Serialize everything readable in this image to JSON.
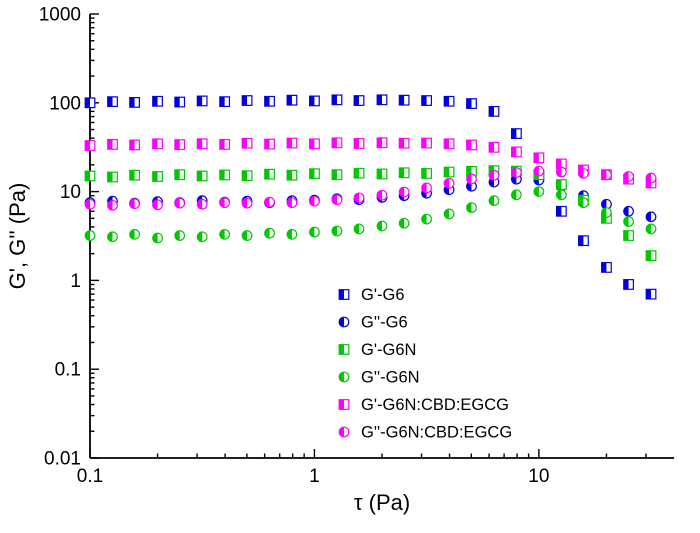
{
  "chart_data": {
    "type": "scatter",
    "title": "",
    "xlabel": "τ (Pa)",
    "ylabel": "G', G'' (Pa)",
    "xscale": "log",
    "yscale": "log",
    "xlim": [
      0.1,
      40
    ],
    "ylim": [
      0.01,
      1000
    ],
    "grid": false,
    "legend_position": "inside-bottom-center",
    "x_axis": {
      "ticks": [
        {
          "v": 0.1,
          "label": "0.1"
        },
        {
          "v": 1,
          "label": "1"
        },
        {
          "v": 10,
          "label": "10"
        }
      ]
    },
    "y_axis": {
      "ticks": [
        {
          "v": 0.01,
          "label": "0.01"
        },
        {
          "v": 0.1,
          "label": "0.1"
        },
        {
          "v": 1,
          "label": "1"
        },
        {
          "v": 10,
          "label": "10"
        },
        {
          "v": 100,
          "label": "100"
        },
        {
          "v": 1000,
          "label": "1000"
        }
      ]
    },
    "x": [
      0.1,
      0.126,
      0.158,
      0.2,
      0.251,
      0.316,
      0.398,
      0.501,
      0.631,
      0.794,
      1.0,
      1.26,
      1.58,
      2.0,
      2.51,
      3.16,
      3.98,
      5.01,
      6.31,
      7.94,
      10.0,
      12.6,
      15.8,
      20.0,
      25.1,
      31.6
    ],
    "series": [
      {
        "id": "gprime-g6",
        "name": "G'-G6",
        "marker": "square",
        "fill_style": "half-left",
        "color": "#0000E0",
        "values": [
          100,
          103,
          101,
          104,
          102,
          105,
          103,
          106,
          104,
          107,
          105,
          108,
          106,
          108,
          107,
          106,
          104,
          98,
          80,
          45,
          15,
          6,
          2.8,
          1.4,
          0.9,
          0.7
        ]
      },
      {
        "id": "gdblprime-g6",
        "name": "G''-G6",
        "marker": "circle",
        "fill_style": "half-left",
        "color": "#0000E0",
        "values": [
          7.5,
          7.8,
          7.4,
          7.7,
          7.5,
          7.9,
          7.6,
          7.8,
          7.5,
          7.9,
          8.0,
          8.3,
          8.1,
          8.6,
          9.0,
          9.6,
          10.5,
          11.5,
          12.8,
          13.8,
          13.5,
          11.5,
          9.0,
          7.2,
          6.0,
          5.2
        ]
      },
      {
        "id": "gprime-g6n",
        "name": "G'-G6N",
        "marker": "square",
        "fill_style": "half-left",
        "color": "#00C800",
        "values": [
          15,
          14.6,
          15.3,
          14.8,
          15.5,
          15.0,
          15.4,
          15.1,
          15.7,
          15.3,
          15.9,
          15.5,
          16.1,
          15.8,
          16.3,
          16.0,
          16.6,
          16.9,
          17.2,
          17.0,
          15.5,
          12.0,
          8.0,
          5.0,
          3.2,
          1.9
        ]
      },
      {
        "id": "gdblprime-g6n",
        "name": "G''-G6N",
        "marker": "circle",
        "fill_style": "half-left",
        "color": "#00C800",
        "values": [
          3.2,
          3.1,
          3.3,
          3.0,
          3.2,
          3.1,
          3.3,
          3.2,
          3.4,
          3.3,
          3.5,
          3.6,
          3.8,
          4.1,
          4.4,
          4.9,
          5.6,
          6.6,
          7.9,
          9.2,
          10.0,
          9.2,
          7.5,
          5.8,
          4.6,
          3.8
        ]
      },
      {
        "id": "gprime-g6n-cbd-egcg",
        "name": "G'-G6N:CBD:EGCG",
        "marker": "square",
        "fill_style": "half-left",
        "color": "#FF00FF",
        "values": [
          33,
          34,
          33.5,
          34.5,
          33.8,
          34.6,
          34.0,
          35.0,
          34.3,
          35.2,
          34.5,
          35.4,
          34.8,
          35.5,
          35.0,
          35.2,
          34.5,
          33.5,
          31.5,
          28.0,
          24.0,
          20.5,
          17.5,
          15.5,
          13.8,
          12.5
        ]
      },
      {
        "id": "gdblprime-g6n-cbd-egcg",
        "name": "G''-G6N:CBD:EGCG",
        "marker": "circle",
        "fill_style": "half-left",
        "color": "#FF00FF",
        "values": [
          7.2,
          7.0,
          7.3,
          7.1,
          7.4,
          7.2,
          7.5,
          7.4,
          7.6,
          7.5,
          7.8,
          8.1,
          8.5,
          9.1,
          9.9,
          11.0,
          12.4,
          13.9,
          15.3,
          16.4,
          17.0,
          16.6,
          16.0,
          15.4,
          14.8,
          14.2
        ]
      }
    ],
    "legend": {
      "entries": [
        "G'-G6",
        "G''-G6",
        "G'-G6N",
        "G''-G6N",
        "G'-G6N:CBD:EGCG",
        "G''-G6N:CBD:EGCG"
      ]
    },
    "colors": {
      "axis": "#000000",
      "background": "#ffffff",
      "blue": "#0000E0",
      "green": "#00C800",
      "magenta": "#FF00FF"
    }
  }
}
